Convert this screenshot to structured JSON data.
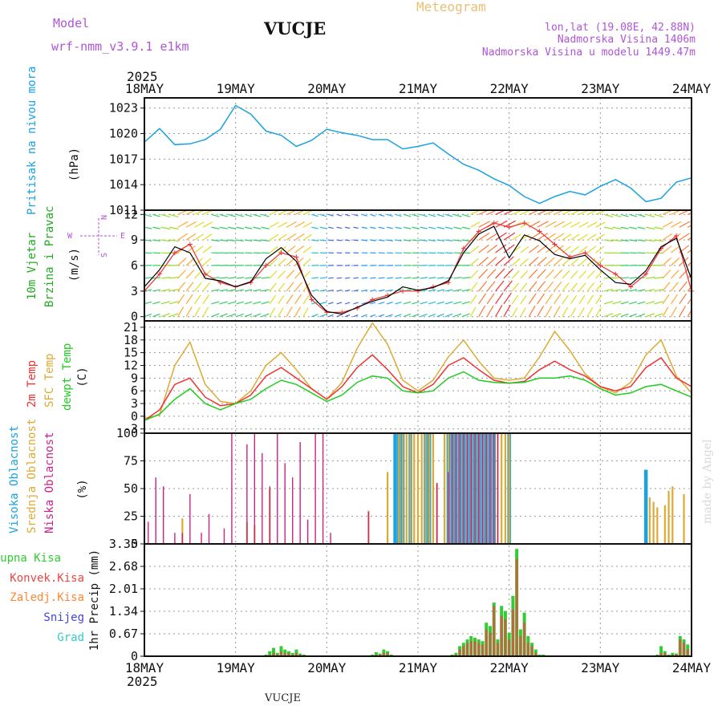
{
  "header": {
    "model_label": "Model",
    "model_name": "wrf-nmm_v3.9.1 e1km",
    "station": "VUCJE",
    "meteogram": "Meteogram",
    "lonlat": "lon,lat (19.08E, 42.88N)",
    "altitude": "Nadmorska Visina 1406m",
    "model_altitude": "Nadmorska Visina u modelu 1449.47m",
    "year": "2025",
    "footer_station": "VUCJE",
    "made_by": "made by Angel"
  },
  "colors": {
    "pressure": "#1aa3e0",
    "temp2m": "#ee3333",
    "sfc": "#ddaa33",
    "dewpt": "#22cc22",
    "high_cloud": "#1aa3e0",
    "mid_cloud": "#ddaa33",
    "low_cloud": "#cc2288",
    "total_precip": "#33cc33",
    "conv_precip": "#ee4444",
    "frz_precip": "#ff8833",
    "snow": "#4444dd",
    "hail": "#33cccc"
  },
  "x_axis": {
    "ticks": [
      "18MAY",
      "19MAY",
      "20MAY",
      "21MAY",
      "22MAY",
      "23MAY",
      "24MAY"
    ]
  },
  "panels": {
    "pressure": {
      "label": "Pritisak na nivou mora",
      "unit": "(hPa)",
      "ticks": [
        "1011",
        "1014",
        "1017",
        "1020",
        "1023"
      ]
    },
    "wind": {
      "label1": "10m Vjetar",
      "label2": "Brzina i Pravac",
      "unit": "(m/s)",
      "ticks": [
        "0",
        "3",
        "6",
        "9",
        "12"
      ],
      "compass": {
        "n": "N",
        "s": "S",
        "w": "W",
        "e": "E"
      }
    },
    "temp": {
      "label_2m": "2m Temp",
      "label_sfc": "SFC Temp",
      "label_dew": "dewpt Temp",
      "unit": "(C)",
      "ticks": [
        "-3",
        "0",
        "3",
        "6",
        "9",
        "12",
        "15",
        "18",
        "21"
      ]
    },
    "cloud": {
      "label_high": "Visoka Oblacnost",
      "label_mid": "Srednja Oblacnost",
      "label_low": "Niska Oblacnost",
      "unit": "(%)",
      "ticks": [
        "0",
        "25",
        "50",
        "75",
        "100"
      ]
    },
    "precip": {
      "label": "1hr Precip (mm)",
      "ticks": [
        "0",
        "0.67",
        "1.34",
        "2.01",
        "2.68",
        "3.35"
      ],
      "legend": [
        "Ukupna Kisa",
        "Konvek.Kisa",
        "Zaledj.Kisa",
        "Snijeg",
        "Grad"
      ]
    }
  },
  "chart_data": [
    {
      "type": "line",
      "name": "pressure",
      "ylabel": "(hPa)",
      "ylim": [
        1011,
        1024.2
      ],
      "x": [
        0,
        4,
        8,
        12,
        16,
        20,
        24,
        28,
        32,
        36,
        40,
        44,
        48,
        52,
        56,
        60,
        64,
        68,
        72,
        76,
        80,
        84,
        88,
        92,
        96,
        100,
        104,
        108,
        112,
        116,
        120,
        124,
        128,
        132,
        136,
        140,
        144
      ],
      "series": [
        {
          "name": "Pritisak na nivou mora",
          "values": [
            1019,
            1020.6,
            1018.7,
            1018.8,
            1019.3,
            1020.5,
            1023.3,
            1022.3,
            1020.3,
            1019.8,
            1018.5,
            1019.2,
            1020.5,
            1020.1,
            1019.8,
            1019.3,
            1019.3,
            1018.2,
            1018.5,
            1018.9,
            1017.6,
            1016.4,
            1015.7,
            1014.7,
            1013.9,
            1012.6,
            1011.8,
            1012.6,
            1013.2,
            1012.8,
            1013.8,
            1014.6,
            1013.6,
            1012,
            1012.4,
            1014.3,
            1014.8
          ]
        }
      ]
    },
    {
      "type": "line",
      "name": "wind",
      "ylabel": "(m/s)",
      "ylim": [
        -0.5,
        12.5
      ],
      "x": [
        0,
        4,
        8,
        12,
        16,
        20,
        24,
        28,
        32,
        36,
        40,
        44,
        48,
        52,
        56,
        60,
        64,
        68,
        72,
        76,
        80,
        84,
        88,
        92,
        96,
        100,
        104,
        108,
        112,
        116,
        120,
        124,
        128,
        132,
        136,
        140,
        144
      ],
      "series": [
        {
          "name": "speed",
          "values": [
            3.5,
            5.5,
            8.2,
            7.5,
            4.5,
            4.2,
            3.5,
            4.1,
            6.8,
            8.1,
            6.5,
            2.5,
            0.6,
            0.3,
            1.1,
            1.8,
            2.3,
            3.5,
            3.1,
            3.4,
            4.2,
            7.5,
            9.7,
            10.6,
            6.9,
            9.6,
            8.9,
            7.3,
            6.8,
            7.2,
            5.5,
            4,
            3.8,
            5.4,
            8.2,
            9.2,
            4.4
          ]
        },
        {
          "name": "gust",
          "values": [
            3,
            5,
            7.5,
            8.5,
            5,
            4,
            3.5,
            4,
            6,
            7.5,
            7,
            2,
            0.5,
            0.5,
            1,
            2,
            2.5,
            3,
            3,
            3.5,
            4,
            8,
            10,
            11,
            10.5,
            11,
            10,
            8.5,
            7,
            7.5,
            6,
            5,
            3.5,
            5,
            8,
            9.5,
            3
          ]
        }
      ]
    },
    {
      "type": "line",
      "name": "temperature",
      "ylabel": "(C)",
      "ylim": [
        -4,
        22.5
      ],
      "x": [
        0,
        4,
        8,
        12,
        16,
        20,
        24,
        28,
        32,
        36,
        40,
        44,
        48,
        52,
        56,
        60,
        64,
        68,
        72,
        76,
        80,
        84,
        88,
        92,
        96,
        100,
        104,
        108,
        112,
        116,
        120,
        124,
        128,
        132,
        136,
        140,
        144
      ],
      "series": [
        {
          "name": "2m Temp",
          "values": [
            -1,
            1.5,
            7.5,
            9,
            4.5,
            2.5,
            3,
            5,
            9.5,
            11.5,
            9,
            6.5,
            4,
            7,
            11.5,
            14.5,
            11,
            7,
            5.5,
            7.5,
            12,
            13.8,
            11,
            8.5,
            7.8,
            8.2,
            11,
            13,
            11,
            9.5,
            7,
            6,
            7,
            11.5,
            13.8,
            9,
            7
          ]
        },
        {
          "name": "SFC Temp",
          "values": [
            -0.5,
            0.3,
            12,
            17.5,
            7.5,
            3.5,
            3,
            6,
            12,
            15,
            11,
            6.5,
            4,
            8,
            16,
            22,
            17,
            8.5,
            6,
            8.5,
            14,
            18,
            13,
            9,
            8.5,
            9,
            14,
            20,
            15.5,
            10,
            7,
            5.5,
            8,
            14.5,
            18,
            9.5,
            5.5
          ]
        },
        {
          "name": "dewpt Temp",
          "values": [
            -1,
            0.5,
            4,
            6.5,
            3,
            1.5,
            3,
            4,
            6.5,
            8.5,
            7.5,
            5.5,
            3.5,
            5,
            8,
            9.5,
            9,
            6,
            5.5,
            6,
            9,
            10.5,
            8.5,
            8,
            7.8,
            8,
            9,
            9,
            9.5,
            8.5,
            6.5,
            5,
            5.5,
            7,
            7.5,
            6,
            4.5
          ]
        }
      ]
    },
    {
      "type": "bar",
      "name": "cloud cover",
      "ylabel": "(%)",
      "ylim": [
        0,
        100
      ],
      "categories": [
        1,
        3,
        5,
        8,
        10,
        12,
        15,
        17,
        21,
        23,
        27,
        29,
        31,
        33,
        35,
        37,
        39,
        41,
        43,
        45,
        47,
        49,
        51,
        53,
        56,
        59,
        62,
        64,
        66,
        67,
        68,
        69,
        70,
        71,
        72,
        73,
        74,
        75,
        76,
        77,
        79,
        80,
        81,
        82,
        83,
        84,
        85,
        86,
        87,
        88,
        89,
        90,
        91,
        92,
        93,
        94,
        95,
        96,
        97,
        98,
        99,
        100,
        101,
        104,
        107,
        110,
        113,
        118,
        120,
        126,
        128,
        130,
        131,
        132,
        133,
        134,
        135,
        136,
        137,
        138,
        139,
        140,
        142
      ],
      "series": [
        {
          "name": "Visoka Oblacnost",
          "values": [
            0,
            0,
            0,
            0,
            0,
            0,
            0,
            0,
            0,
            0,
            0,
            0,
            0,
            0,
            0,
            0,
            0,
            0,
            0,
            0,
            0,
            0,
            0,
            0,
            0,
            0,
            0,
            0,
            100,
            100,
            100,
            0,
            100,
            0,
            0,
            0,
            100,
            100,
            0,
            0,
            0,
            100,
            100,
            100,
            100,
            100,
            100,
            100,
            100,
            100,
            100,
            100,
            100,
            100,
            0,
            0,
            0,
            100,
            0,
            0,
            0,
            0,
            0,
            0,
            0,
            0,
            0,
            0,
            0,
            0,
            0,
            0,
            0,
            67,
            0,
            0,
            0,
            0,
            0,
            0,
            0,
            0,
            0
          ]
        },
        {
          "name": "Srednja Oblacnost",
          "values": [
            0,
            0,
            0,
            0,
            23,
            0,
            0,
            0,
            0,
            0,
            20,
            17,
            0,
            50,
            0,
            0,
            0,
            0,
            0,
            0,
            0,
            0,
            0,
            0,
            0,
            30,
            0,
            65,
            0,
            100,
            100,
            100,
            100,
            100,
            100,
            100,
            100,
            100,
            100,
            55,
            100,
            100,
            100,
            100,
            100,
            100,
            100,
            100,
            100,
            100,
            100,
            100,
            100,
            100,
            100,
            100,
            100,
            100,
            0,
            0,
            0,
            0,
            0,
            0,
            0,
            0,
            0,
            0,
            0,
            0,
            0,
            0,
            0,
            0,
            42,
            38,
            33,
            0,
            35,
            48,
            52,
            0,
            45
          ]
        },
        {
          "name": "Niska Oblacnost",
          "values": [
            20,
            60,
            52,
            10,
            10,
            45,
            10,
            27,
            14,
            100,
            90,
            100,
            82,
            52,
            100,
            73,
            60,
            92,
            22,
            100,
            100,
            10,
            0,
            0,
            0,
            29,
            0,
            0,
            0,
            0,
            0,
            0,
            0,
            0,
            0,
            0,
            0,
            0,
            0,
            55,
            0,
            65,
            100,
            100,
            100,
            100,
            100,
            100,
            100,
            100,
            100,
            100,
            100,
            100,
            100,
            0,
            0,
            0,
            0,
            0,
            0,
            0,
            0,
            0,
            0,
            0,
            0,
            0,
            0,
            0,
            0,
            0,
            0,
            0,
            0,
            0,
            0,
            0,
            0,
            0,
            0,
            0,
            0
          ]
        }
      ]
    },
    {
      "type": "bar",
      "name": "1hr precipitation",
      "ylabel": "1hr Precip (mm)",
      "ylim": [
        0,
        3.35
      ],
      "categories": [
        32,
        33,
        34,
        35,
        36,
        37,
        38,
        39,
        40,
        41,
        42,
        60,
        61,
        62,
        63,
        64,
        65,
        81,
        82,
        83,
        84,
        85,
        86,
        87,
        88,
        89,
        90,
        91,
        92,
        93,
        94,
        95,
        96,
        97,
        98,
        99,
        100,
        101,
        102,
        103,
        104,
        105,
        135,
        136,
        137,
        138,
        139,
        140,
        141,
        142,
        143
      ],
      "series": [
        {
          "name": "Ukupna Kisa",
          "values": [
            0.05,
            0.15,
            0.25,
            0.1,
            0.3,
            0.2,
            0.15,
            0.1,
            0.2,
            0.08,
            0.05,
            0.05,
            0.12,
            0.08,
            0.2,
            0.15,
            0.05,
            0.05,
            0.1,
            0.3,
            0.4,
            0.5,
            0.6,
            0.55,
            0.5,
            0.45,
            1,
            0.9,
            1.6,
            0.5,
            1.5,
            1.35,
            0.7,
            1.8,
            3.2,
            0.8,
            1.3,
            0.6,
            0.4,
            0.2,
            0.05,
            0.05,
            0.05,
            0.3,
            0.15,
            0.05,
            0.1,
            0.08,
            0.6,
            0.5,
            0.35
          ]
        },
        {
          "name": "Konvek.Kisa",
          "values": [
            0,
            0.05,
            0.1,
            0.05,
            0.15,
            0.1,
            0.1,
            0.05,
            0.1,
            0.05,
            0,
            0,
            0.05,
            0.05,
            0.1,
            0.1,
            0,
            0,
            0.05,
            0.2,
            0.3,
            0.4,
            0.45,
            0.45,
            0.4,
            0.35,
            0.8,
            0.7,
            1.5,
            0.4,
            1.2,
            1.1,
            0.5,
            1.4,
            2.9,
            0.6,
            1,
            0.4,
            0.3,
            0.1,
            0,
            0,
            0,
            0.1,
            0.1,
            0,
            0.05,
            0.05,
            0.5,
            0.4,
            0.2
          ]
        },
        {
          "name": "Zaledj.Kisa",
          "values": [
            0,
            0,
            0,
            0,
            0,
            0,
            0,
            0,
            0,
            0,
            0,
            0,
            0,
            0,
            0,
            0,
            0,
            0,
            0,
            0,
            0,
            0,
            0,
            0,
            0,
            0,
            0,
            0,
            0,
            0,
            0,
            0,
            0,
            0,
            0,
            0,
            0,
            0,
            0,
            0,
            0,
            0,
            0,
            0,
            0,
            0,
            0,
            0,
            0,
            0,
            0
          ]
        }
      ]
    }
  ]
}
